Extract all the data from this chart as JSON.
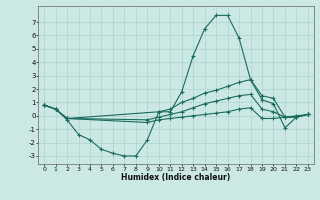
{
  "xlabel": "Humidex (Indice chaleur)",
  "bg_color": "#cce8e4",
  "grid_color": "#aad4cc",
  "line_color": "#1a6b60",
  "xlim": [
    -0.5,
    23.5
  ],
  "ylim": [
    -3.6,
    8.2
  ],
  "yticks": [
    -3,
    -2,
    -1,
    0,
    1,
    2,
    3,
    4,
    5,
    6,
    7
  ],
  "xticks": [
    0,
    1,
    2,
    3,
    4,
    5,
    6,
    7,
    8,
    9,
    10,
    11,
    12,
    13,
    14,
    15,
    16,
    17,
    18,
    19,
    20,
    21,
    22,
    23
  ],
  "line1_x": [
    0,
    1,
    2,
    3,
    4,
    5,
    6,
    7,
    8,
    9,
    10,
    11,
    12,
    13,
    14,
    15,
    16,
    17,
    18,
    19,
    20,
    21,
    22,
    23
  ],
  "line1_y": [
    0.8,
    0.5,
    -0.3,
    -1.4,
    -1.8,
    -2.5,
    -2.8,
    -3.0,
    -3.0,
    -1.8,
    0.3,
    0.3,
    1.8,
    4.5,
    6.5,
    7.5,
    7.5,
    5.8,
    2.7,
    1.2,
    0.9,
    -0.9,
    -0.1,
    0.1
  ],
  "line2_x": [
    0,
    1,
    2,
    10,
    11,
    12,
    13,
    14,
    15,
    16,
    17,
    18,
    19,
    20,
    21,
    22,
    23
  ],
  "line2_y": [
    0.8,
    0.5,
    -0.2,
    0.3,
    0.5,
    1.0,
    1.3,
    1.7,
    1.9,
    2.2,
    2.5,
    2.7,
    1.5,
    1.3,
    -0.1,
    -0.1,
    0.1
  ],
  "line3_x": [
    0,
    1,
    2,
    9,
    10,
    11,
    12,
    13,
    14,
    15,
    16,
    17,
    18,
    19,
    20,
    21,
    22,
    23
  ],
  "line3_y": [
    0.8,
    0.5,
    -0.2,
    -0.3,
    -0.1,
    0.1,
    0.3,
    0.6,
    0.9,
    1.1,
    1.3,
    1.5,
    1.6,
    0.5,
    0.3,
    -0.1,
    -0.1,
    0.1
  ],
  "line4_x": [
    0,
    1,
    2,
    9,
    10,
    11,
    12,
    13,
    14,
    15,
    16,
    17,
    18,
    19,
    20,
    21,
    22,
    23
  ],
  "line4_y": [
    0.8,
    0.5,
    -0.2,
    -0.5,
    -0.3,
    -0.2,
    -0.1,
    0.0,
    0.1,
    0.2,
    0.3,
    0.5,
    0.6,
    -0.2,
    -0.2,
    -0.1,
    0.0,
    0.1
  ]
}
